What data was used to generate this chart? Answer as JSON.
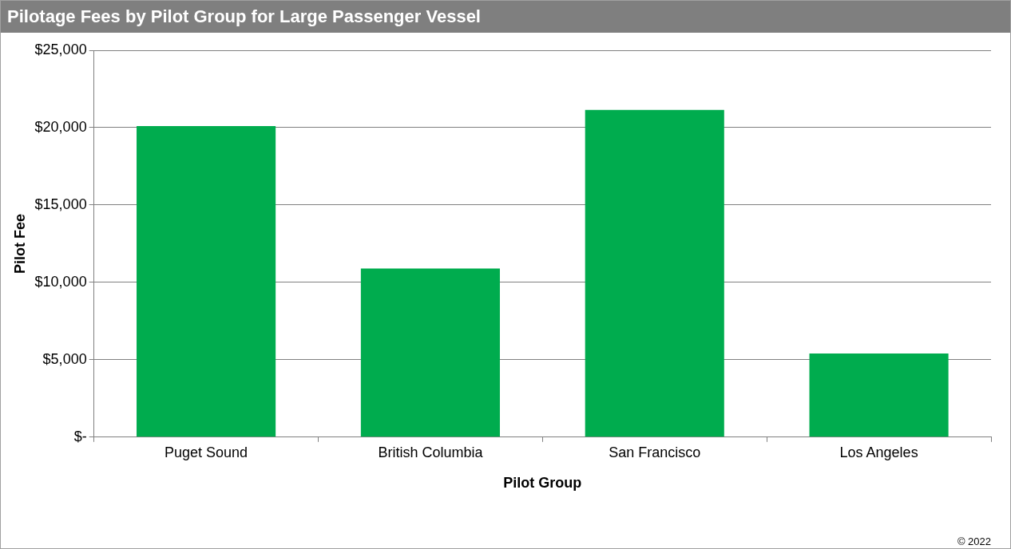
{
  "chart_data": {
    "type": "bar",
    "title": "Pilotage Fees by Pilot Group for Large Passenger Vessel",
    "xlabel": "Pilot Group",
    "ylabel": "Pilot Fee",
    "categories": [
      "Puget Sound",
      "British Columbia",
      "San Francisco",
      "Los Angeles"
    ],
    "values": [
      20100,
      10900,
      21150,
      5400
    ],
    "color": "#00ac4e",
    "ylim": [
      0,
      25000
    ],
    "yticks": [
      {
        "value": 0,
        "label": "$-"
      },
      {
        "value": 5000,
        "label": "$5,000"
      },
      {
        "value": 10000,
        "label": "$10,000"
      },
      {
        "value": 15000,
        "label": "$15,000"
      },
      {
        "value": 20000,
        "label": "$20,000"
      },
      {
        "value": 25000,
        "label": "$25,000"
      }
    ],
    "grid": "y",
    "legend": false,
    "annotations": [
      "© 2022"
    ]
  }
}
